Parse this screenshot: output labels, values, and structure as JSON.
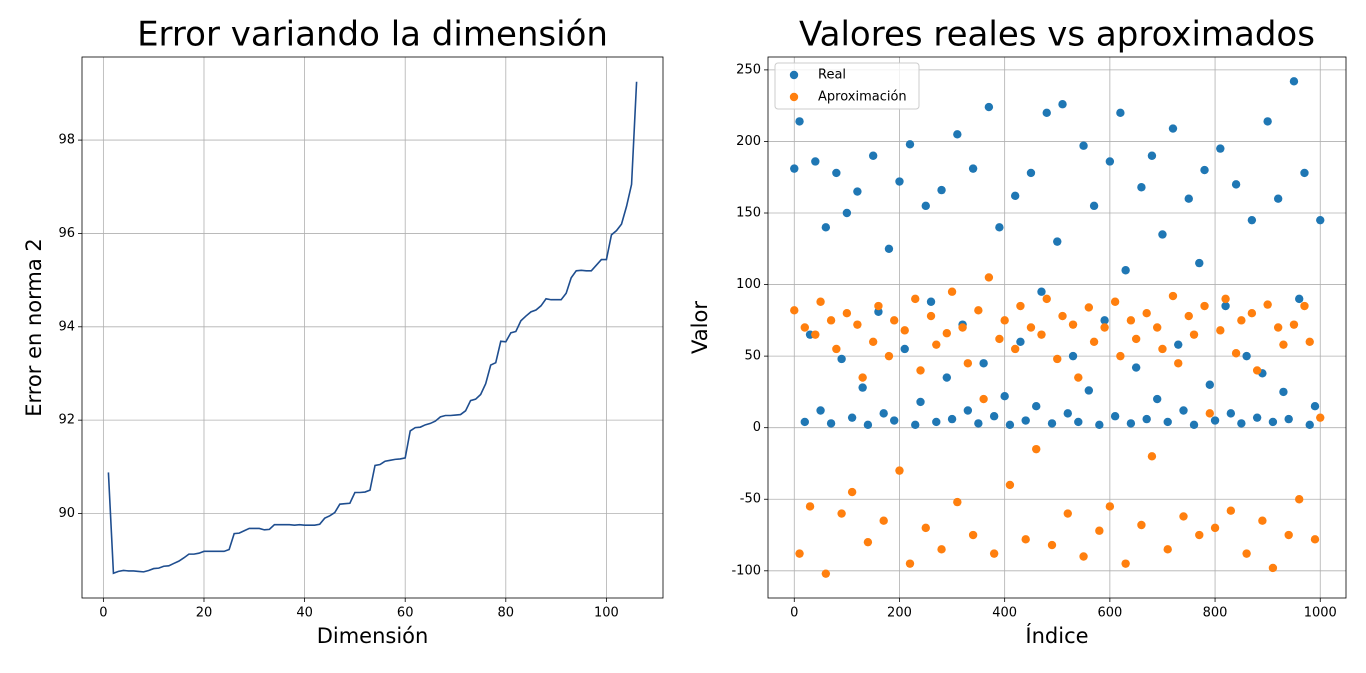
{
  "chart_data": [
    {
      "type": "line",
      "title": "Error variando la dimensión",
      "xlabel": "Dimensión",
      "ylabel": "Error en norma 2",
      "x": [
        1,
        2,
        3,
        4,
        5,
        6,
        7,
        8,
        9,
        10,
        11,
        12,
        13,
        14,
        15,
        16,
        17,
        18,
        19,
        20,
        21,
        22,
        23,
        24,
        25,
        26,
        27,
        28,
        29,
        30,
        31,
        32,
        33,
        34,
        35,
        36,
        37,
        38,
        39,
        40,
        41,
        42,
        43,
        44,
        45,
        46,
        47,
        48,
        49,
        50,
        51,
        52,
        53,
        54,
        55,
        56,
        57,
        58,
        59,
        60,
        61,
        62,
        63,
        64,
        65,
        66,
        67,
        68,
        69,
        70,
        71,
        72,
        73,
        74,
        75,
        76,
        77,
        78,
        79,
        80,
        81,
        82,
        83,
        84,
        85,
        86,
        87,
        88,
        89,
        90,
        91,
        92,
        93,
        94,
        95,
        96,
        97,
        98,
        99,
        100,
        101,
        102,
        103,
        104,
        105,
        106
      ],
      "values": [
        90.88,
        88.72,
        88.76,
        88.78,
        88.77,
        88.77,
        88.76,
        88.75,
        88.78,
        88.82,
        88.83,
        88.87,
        88.88,
        88.93,
        88.98,
        89.05,
        89.13,
        89.13,
        89.15,
        89.19,
        89.19,
        89.19,
        89.19,
        89.19,
        89.23,
        89.57,
        89.58,
        89.63,
        89.68,
        89.68,
        89.68,
        89.65,
        89.66,
        89.76,
        89.76,
        89.76,
        89.76,
        89.75,
        89.76,
        89.75,
        89.75,
        89.75,
        89.77,
        89.9,
        89.95,
        90.02,
        90.2,
        90.21,
        90.22,
        90.45,
        90.45,
        90.46,
        90.5,
        91.03,
        91.05,
        91.12,
        91.14,
        91.16,
        91.17,
        91.19,
        91.77,
        91.84,
        91.85,
        91.9,
        91.93,
        91.98,
        92.07,
        92.1,
        92.1,
        92.11,
        92.12,
        92.2,
        92.42,
        92.45,
        92.55,
        92.78,
        93.18,
        93.23,
        93.69,
        93.68,
        93.87,
        93.9,
        94.13,
        94.23,
        94.32,
        94.36,
        94.45,
        94.6,
        94.58,
        94.58,
        94.58,
        94.72,
        95.05,
        95.2,
        95.21,
        95.2,
        95.2,
        95.32,
        95.44,
        95.44,
        95.97,
        96.06,
        96.2,
        96.58,
        97.05,
        99.25
      ],
      "color": "#1f4e8f",
      "xlim": [
        -4.25,
        111.25
      ],
      "ylim": [
        88.19,
        99.78
      ],
      "xticks": [
        0,
        20,
        40,
        60,
        80,
        100
      ],
      "yticks": [
        90,
        92,
        94,
        96,
        98
      ],
      "grid": true
    },
    {
      "type": "scatter",
      "title": "Valores reales vs aproximados",
      "xlabel": "Índice",
      "ylabel": "Valor",
      "x": [
        0,
        10,
        20,
        30,
        40,
        50,
        60,
        70,
        80,
        90,
        100,
        110,
        120,
        130,
        140,
        150,
        160,
        170,
        180,
        190,
        200,
        210,
        220,
        230,
        240,
        250,
        260,
        270,
        280,
        290,
        300,
        310,
        320,
        330,
        340,
        350,
        360,
        370,
        380,
        390,
        400,
        410,
        420,
        430,
        440,
        450,
        460,
        470,
        480,
        490,
        500,
        510,
        520,
        530,
        540,
        550,
        560,
        570,
        580,
        590,
        600,
        610,
        620,
        630,
        640,
        650,
        660,
        670,
        680,
        690,
        700,
        710,
        720,
        730,
        740,
        750,
        760,
        770,
        780,
        790,
        800,
        810,
        820,
        830,
        840,
        850,
        860,
        870,
        880,
        890,
        900,
        910,
        920,
        930,
        940,
        950,
        960,
        970,
        980,
        990,
        1000
      ],
      "series": [
        {
          "name": "Real",
          "color": "#1f77b4",
          "values": [
            181,
            214,
            4,
            65,
            186,
            12,
            140,
            3,
            178,
            48,
            150,
            7,
            165,
            28,
            2,
            190,
            81,
            10,
            125,
            5,
            172,
            55,
            198,
            2,
            18,
            155,
            88,
            4,
            166,
            35,
            6,
            205,
            72,
            12,
            181,
            3,
            45,
            224,
            8,
            140,
            22,
            2,
            162,
            60,
            5,
            178,
            15,
            95,
            220,
            3,
            130,
            226,
            10,
            50,
            4,
            197,
            26,
            155,
            2,
            75,
            186,
            8,
            220,
            110,
            3,
            42,
            168,
            6,
            190,
            20,
            135,
            4,
            209,
            58,
            12,
            160,
            2,
            115,
            180,
            30,
            5,
            195,
            85,
            10,
            170,
            3,
            50,
            145,
            7,
            38,
            214,
            4,
            160,
            25,
            6,
            242,
            90,
            178,
            2,
            15,
            145
          ]
        },
        {
          "name": "Aproximación",
          "color": "#ff7f0e",
          "values": [
            82,
            -88,
            70,
            -55,
            65,
            88,
            -102,
            75,
            55,
            -60,
            80,
            -45,
            72,
            35,
            -80,
            60,
            85,
            -65,
            50,
            75,
            -30,
            68,
            -95,
            90,
            40,
            -70,
            78,
            58,
            -85,
            66,
            95,
            -52,
            70,
            45,
            -75,
            82,
            20,
            105,
            -88,
            62,
            75,
            -40,
            55,
            85,
            -78,
            70,
            -15,
            65,
            90,
            -82,
            48,
            78,
            -60,
            72,
            35,
            -90,
            84,
            60,
            -72,
            70,
            -55,
            88,
            50,
            -95,
            75,
            62,
            -68,
            80,
            -20,
            70,
            55,
            -85,
            92,
            45,
            -62,
            78,
            65,
            -75,
            85,
            10,
            -70,
            68,
            90,
            -58,
            52,
            75,
            -88,
            80,
            40,
            -65,
            86,
            -98,
            70,
            58,
            -75,
            72,
            -50,
            85,
            60,
            -78,
            7
          ]
        }
      ],
      "xlim": [
        -49.95,
        1048.95
      ],
      "ylim": [
        -119,
        259
      ],
      "xticks": [
        0,
        200,
        400,
        600,
        800,
        1000
      ],
      "yticks": [
        -100,
        -50,
        0,
        50,
        100,
        150,
        200,
        250
      ],
      "grid": true,
      "legend": "upper left"
    }
  ]
}
